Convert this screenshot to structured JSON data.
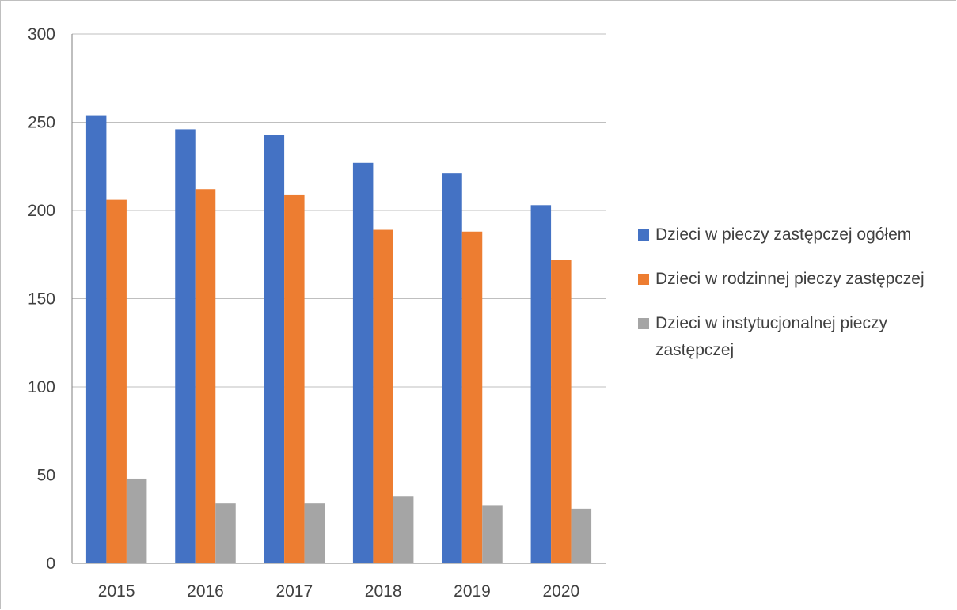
{
  "chart_data": {
    "type": "bar",
    "title": "",
    "xlabel": "",
    "ylabel": "",
    "categories": [
      "2015",
      "2016",
      "2017",
      "2018",
      "2019",
      "2020"
    ],
    "ylim": [
      0,
      300
    ],
    "yticks": [
      "0",
      "50",
      "100",
      "150",
      "200",
      "250",
      "300"
    ],
    "grid": true,
    "legend_position": "right",
    "series": [
      {
        "name": "Dzieci w pieczy zastępczej ogółem",
        "color": "#4472c4",
        "values": [
          254,
          246,
          243,
          227,
          221,
          203
        ]
      },
      {
        "name": "Dzieci w rodzinnej pieczy zastępczej",
        "color": "#ed7d31",
        "values": [
          206,
          212,
          209,
          189,
          188,
          172
        ]
      },
      {
        "name": "Dzieci w instytucjonalnej pieczy zastępczej",
        "color": "#a5a5a5",
        "values": [
          48,
          34,
          34,
          38,
          33,
          31
        ]
      }
    ]
  }
}
